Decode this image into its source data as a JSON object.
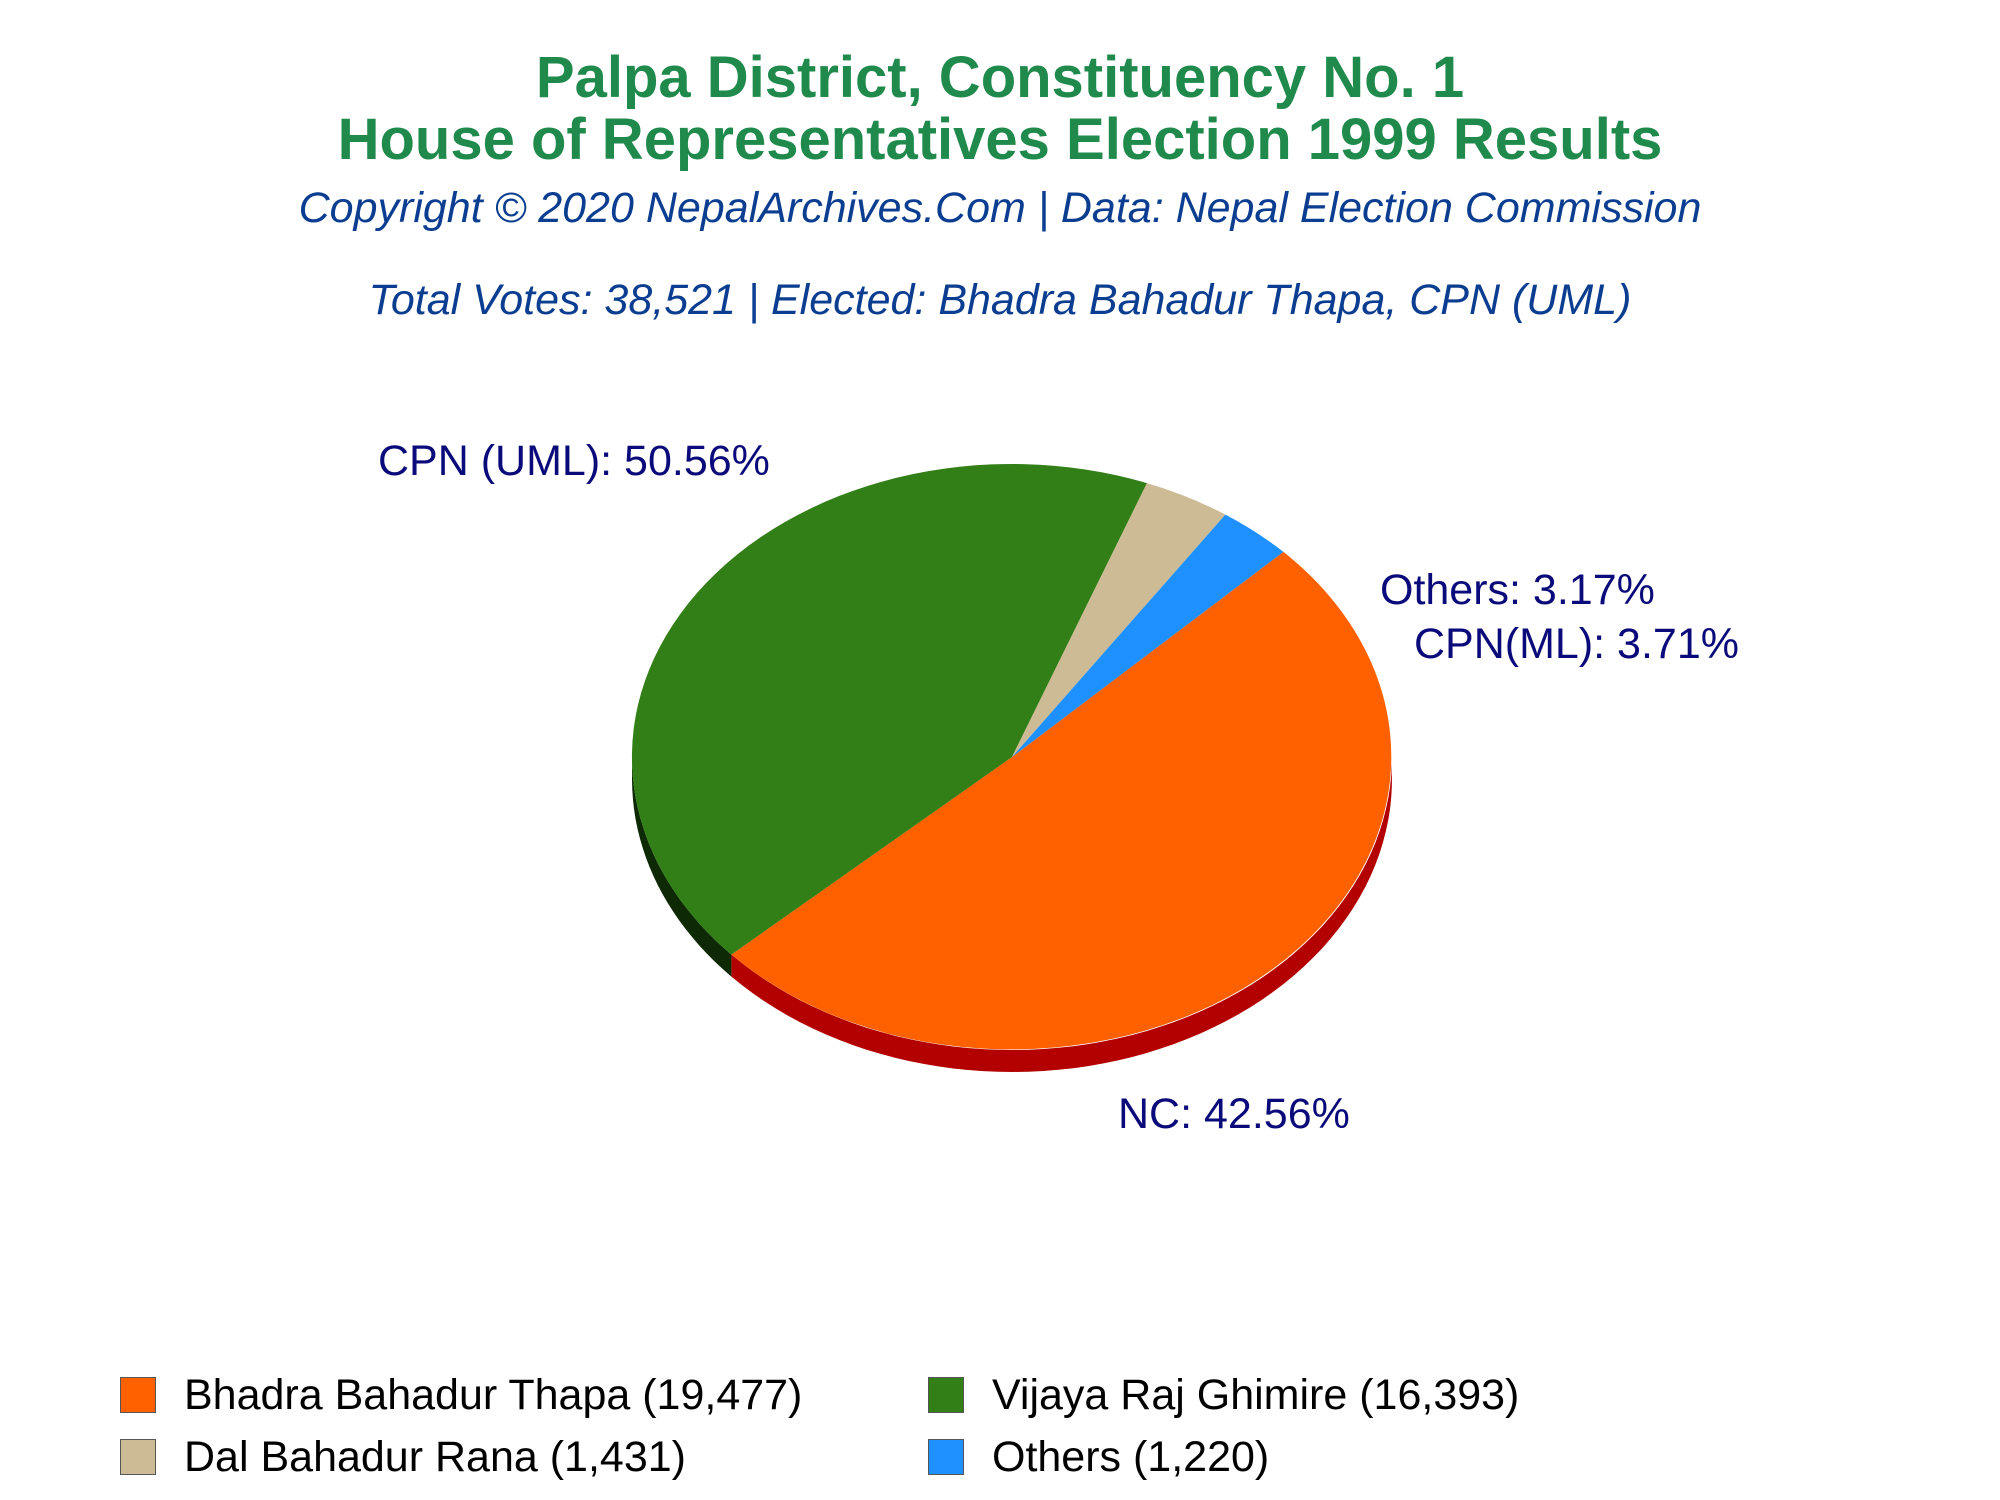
{
  "title_line1": "Palpa District, Constituency No. 1",
  "title_line2": "House of Representatives Election 1999 Results",
  "copyright": "Copyright © 2020 NepalArchives.Com | Data: Nepal Election Commission",
  "summary": "Total Votes: 38,521 | Elected: Bhadra Bahadur Thapa, CPN (UML)",
  "chart_data": {
    "type": "pie",
    "slices": [
      {
        "label": "CPN (UML): 50.56%",
        "party": "CPN (UML)",
        "percent": 50.56,
        "color": "#ff6000",
        "side_color": "#b30000",
        "legend": "Bhadra Bahadur Thapa (19,477)",
        "votes": 19477
      },
      {
        "label": "NC: 42.56%",
        "party": "NC",
        "percent": 42.56,
        "color": "#327f17",
        "side_color": "#0e2a04",
        "legend": "Vijaya Raj Ghimire (16,393)",
        "votes": 16393
      },
      {
        "label": "CPN(ML): 3.71%",
        "party": "CPN(ML)",
        "percent": 3.71,
        "color": "#cdbb95",
        "side_color": "#8a7a5a",
        "legend": "Dal Bahadur Rana (1,431)",
        "votes": 1431
      },
      {
        "label": "Others: 3.17%",
        "party": "Others",
        "percent": 3.17,
        "color": "#1e90ff",
        "side_color": "#0a4d99",
        "legend": "Others (1,220)",
        "votes": 1220
      }
    ]
  },
  "legend": [
    {
      "text": "Bhadra Bahadur Thapa (19,477)",
      "color": "#ff6000"
    },
    {
      "text": "Vijaya Raj Ghimire (16,393)",
      "color": "#327f17"
    },
    {
      "text": "Dal Bahadur Rana (1,431)",
      "color": "#cdbb95"
    },
    {
      "text": "Others (1,220)",
      "color": "#1e90ff"
    }
  ]
}
